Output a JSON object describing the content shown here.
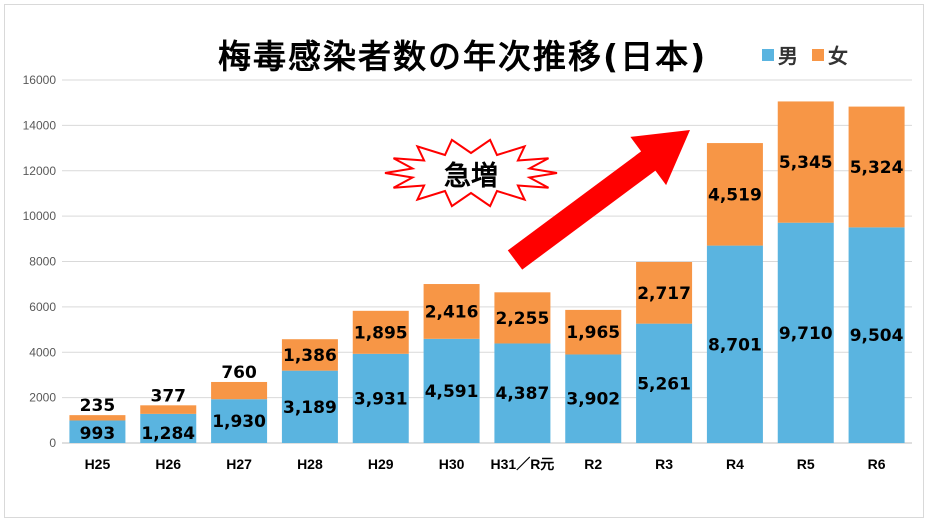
{
  "chart_data": {
    "type": "bar",
    "stacked": true,
    "title": "梅毒感染者数の年次推移(日本)",
    "categories": [
      "H25",
      "H26",
      "H27",
      "H28",
      "H29",
      "H30",
      "H31／R元",
      "R2",
      "R3",
      "R4",
      "R5",
      "R6"
    ],
    "series": [
      {
        "name": "男",
        "color": "#5ab4e0",
        "values": [
          993,
          1284,
          1930,
          3189,
          3931,
          4591,
          4387,
          3902,
          5261,
          8701,
          9710,
          9504
        ]
      },
      {
        "name": "女",
        "color": "#f79646",
        "values": [
          235,
          377,
          760,
          1386,
          1895,
          2416,
          2255,
          1965,
          2717,
          4519,
          5345,
          5324
        ]
      }
    ],
    "ylim": [
      0,
      16000
    ],
    "yticks": [
      0,
      2000,
      4000,
      6000,
      8000,
      10000,
      12000,
      14000,
      16000
    ],
    "grid": true,
    "legend_position": "top-right",
    "annotation": {
      "text": "急増",
      "shape": "burst",
      "arrow_color": "#ff0000"
    }
  }
}
